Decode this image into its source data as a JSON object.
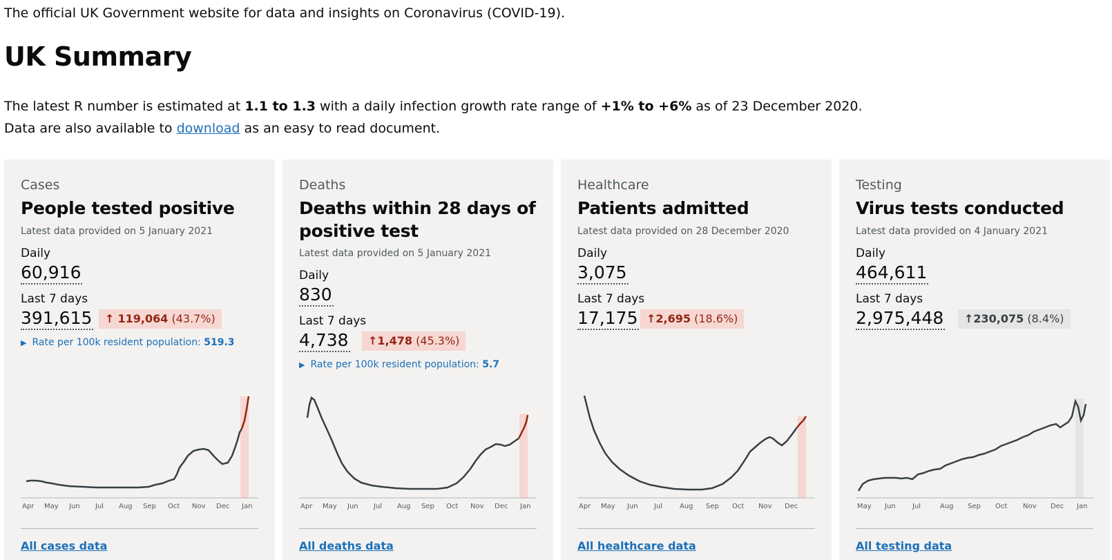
{
  "intro": "The official UK Government website for data and insights on Coronavirus (COVID-19).",
  "page_title": "UK Summary",
  "r_number": {
    "prefix": "The latest R number is estimated at ",
    "range": "1.1 to 1.3",
    "middle": " with a daily infection growth rate range of ",
    "growth": "+1% to +6%",
    "suffix": " as of 23 December 2020."
  },
  "download": {
    "prefix": "Data are also available to ",
    "link": "download",
    "suffix": " as an easy to read document."
  },
  "colors": {
    "link": "#1d70b8",
    "up_bg": "#f6d7d2",
    "up_text": "#942514",
    "neutral_bg": "#e5e5e5"
  },
  "cards": [
    {
      "caption": "Cases",
      "heading": "People tested positive",
      "meta": "Latest data provided on 5 January 2021",
      "daily_label": "Daily",
      "daily_value": "60,916",
      "week_label": "Last 7 days",
      "week_value": "391,615",
      "change_arrow": "↑",
      "change_value": "119,064",
      "change_pct": "(43.7%)",
      "change_trend": "up",
      "rate_icon": "triangle-right-icon",
      "rate_label": "Rate per 100k resident population: ",
      "rate_value": "519.3",
      "months": [
        "Apr",
        "May",
        "Jun",
        "Jul",
        "Aug",
        "Sep",
        "Oct",
        "Nov",
        "Dec",
        "Jan"
      ],
      "link": "All cases data"
    },
    {
      "caption": "Deaths",
      "heading": "Deaths within 28 days of positive test",
      "meta": "Latest data provided on 5 January 2021",
      "daily_label": "Daily",
      "daily_value": "830",
      "week_label": "Last 7 days",
      "week_value": "4,738",
      "change_arrow": "↑",
      "change_value": "1,478",
      "change_pct": "(45.3%)",
      "change_trend": "up",
      "rate_icon": "triangle-right-icon",
      "rate_label": "Rate per 100k resident population: ",
      "rate_value": "5.7",
      "months": [
        "Apr",
        "May",
        "Jun",
        "Jul",
        "Aug",
        "Sep",
        "Oct",
        "Nov",
        "Dec",
        "Jan"
      ],
      "link": "All deaths data"
    },
    {
      "caption": "Healthcare",
      "heading": "Patients admitted",
      "meta": "Latest data provided on 28 December 2020",
      "daily_label": "Daily",
      "daily_value": "3,075",
      "week_label": "Last 7 days",
      "week_value": "17,175",
      "change_arrow": "↑",
      "change_value": "2,695",
      "change_pct": "(18.6%)",
      "change_trend": "up",
      "months": [
        "Apr",
        "May",
        "Jun",
        "Jul",
        "Aug",
        "Sep",
        "Oct",
        "Nov",
        "Dec"
      ],
      "link": "All healthcare data"
    },
    {
      "caption": "Testing",
      "heading": "Virus tests conducted",
      "meta": "Latest data provided on 4 January 2021",
      "daily_label": "Daily",
      "daily_value": "464,611",
      "week_label": "Last 7 days",
      "week_value": "2,975,448",
      "change_arrow": "↑",
      "change_value": "230,075",
      "change_pct": "(8.4%)",
      "change_trend": "neutral",
      "months": [
        "May",
        "Jun",
        "Jul",
        "Aug",
        "Sep",
        "Oct",
        "Nov",
        "Dec",
        "Jan"
      ],
      "link": "All testing data"
    }
  ]
}
